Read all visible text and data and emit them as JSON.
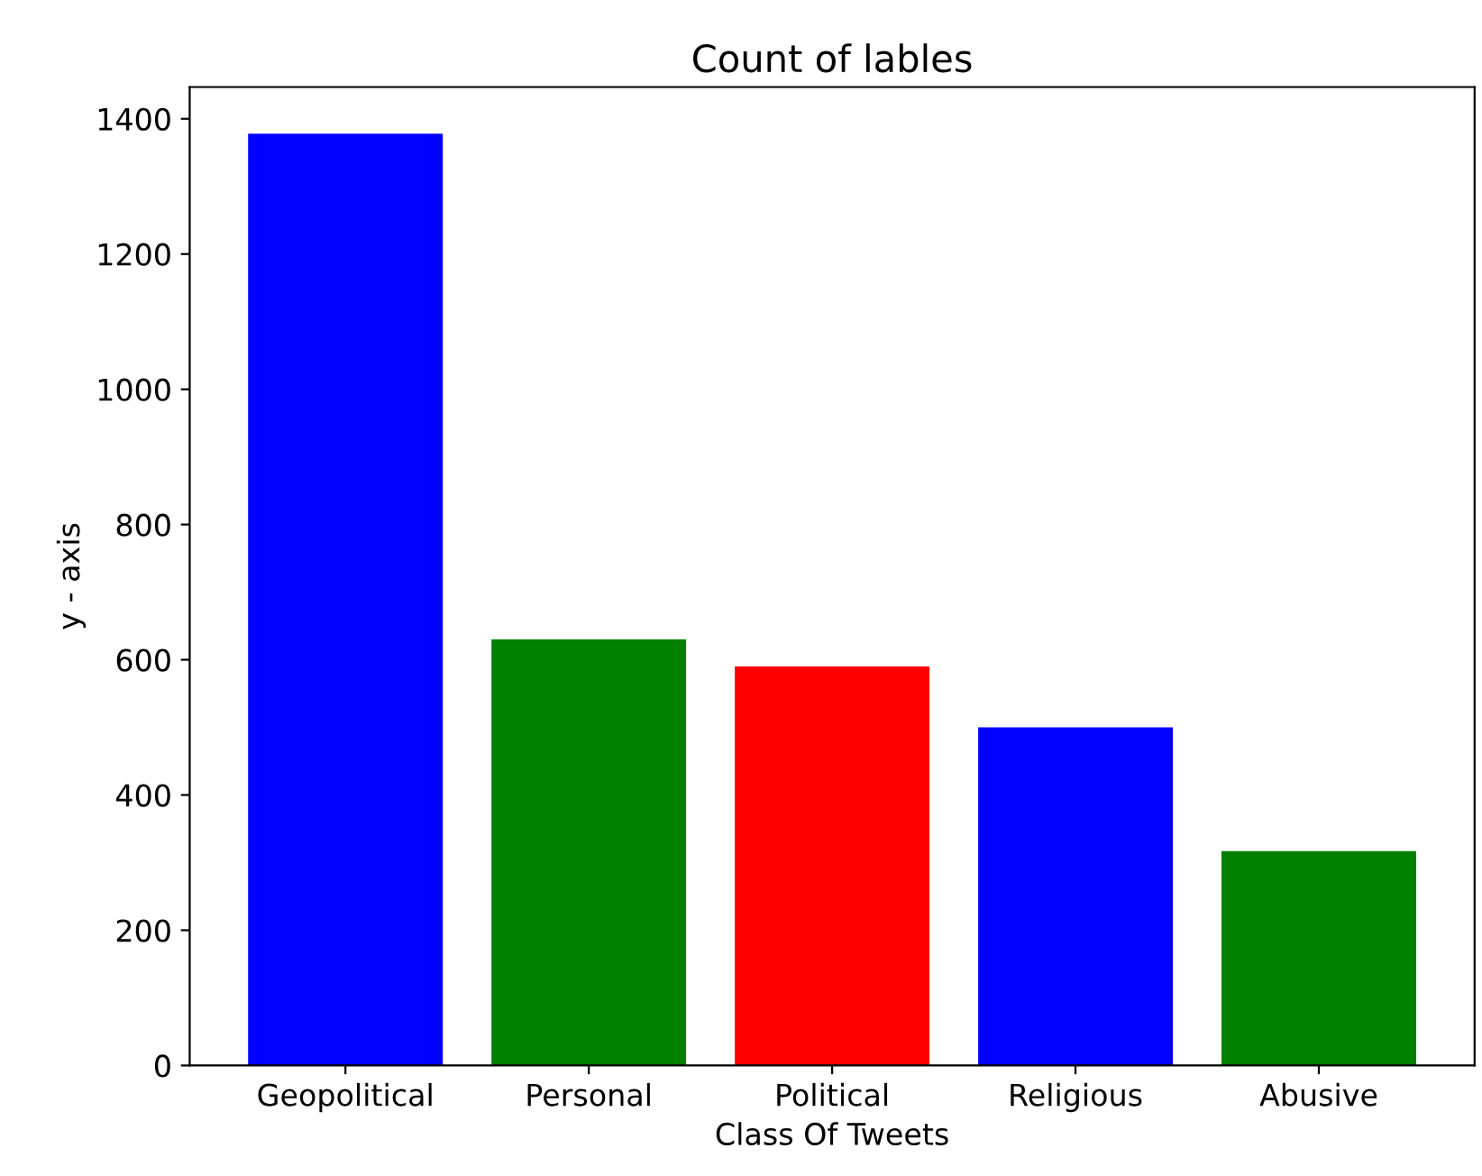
{
  "chart_data": {
    "type": "bar",
    "title": "Count of lables",
    "xlabel": "Class Of Tweets",
    "ylabel": "y - axis",
    "categories": [
      "Geopolitical",
      "Personal",
      "Political",
      "Religious",
      "Abusive"
    ],
    "values": [
      1378,
      630,
      590,
      500,
      317
    ],
    "colors": [
      "#0000ff",
      "#008000",
      "#ff0000",
      "#0000ff",
      "#008000"
    ],
    "ylim": [
      0,
      1447
    ],
    "yticks": [
      0,
      200,
      400,
      600,
      800,
      1000,
      1200,
      1400
    ],
    "grid": false,
    "legend": false
  }
}
